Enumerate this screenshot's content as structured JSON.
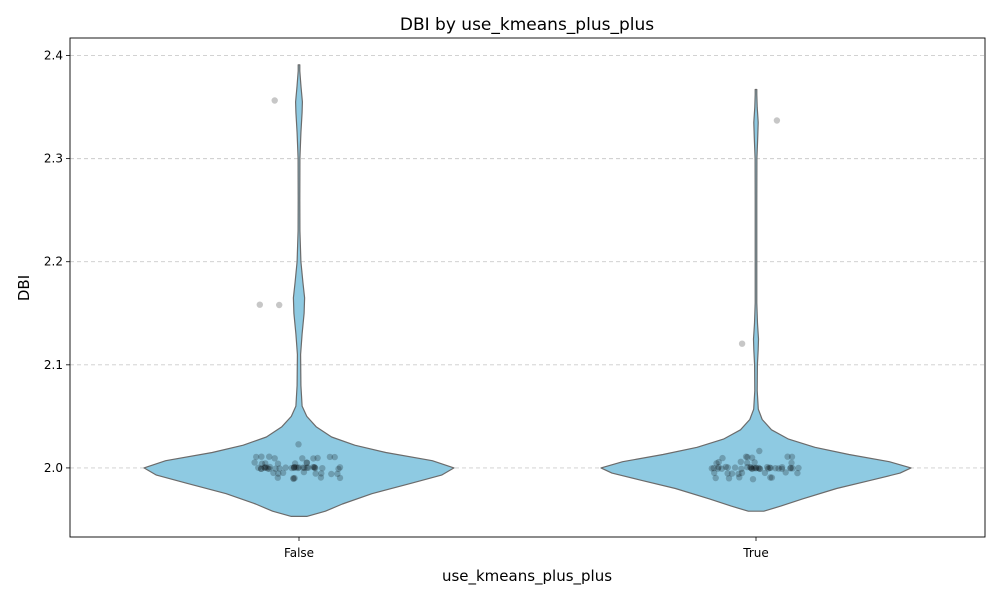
{
  "chart_data": {
    "type": "violin",
    "title": "DBI by use_kmeans_plus_plus",
    "xlabel": "use_kmeans_plus_plus",
    "ylabel": "DBI",
    "categories": [
      "False",
      "True"
    ],
    "yticks": [
      "2.0",
      "2.1",
      "2.2",
      "2.3",
      "2.4"
    ],
    "ylim": [
      1.933,
      2.417
    ],
    "grid": "y-dashed",
    "violin_color": "#8ecae2",
    "outline_color": "#6b6b6b",
    "point_color": "#000000",
    "series": [
      {
        "category": "False",
        "extent": [
          1.953,
          2.391
        ],
        "density": [
          [
            1.953,
            0.05
          ],
          [
            1.958,
            0.17
          ],
          [
            1.965,
            0.28
          ],
          [
            1.975,
            0.47
          ],
          [
            1.985,
            0.72
          ],
          [
            1.993,
            0.92
          ],
          [
            2.0,
            1.0
          ],
          [
            2.007,
            0.86
          ],
          [
            2.015,
            0.56
          ],
          [
            2.022,
            0.36
          ],
          [
            2.03,
            0.21
          ],
          [
            2.04,
            0.11
          ],
          [
            2.05,
            0.05
          ],
          [
            2.06,
            0.02
          ],
          [
            2.08,
            0.012
          ],
          [
            2.11,
            0.01
          ],
          [
            2.13,
            0.02
          ],
          [
            2.15,
            0.033
          ],
          [
            2.165,
            0.036
          ],
          [
            2.18,
            0.025
          ],
          [
            2.2,
            0.012
          ],
          [
            2.23,
            0.006
          ],
          [
            2.26,
            0.005
          ],
          [
            2.3,
            0.006
          ],
          [
            2.325,
            0.012
          ],
          [
            2.345,
            0.02
          ],
          [
            2.355,
            0.022
          ],
          [
            2.37,
            0.013
          ],
          [
            2.385,
            0.005
          ],
          [
            2.391,
            0.004
          ]
        ],
        "points": [
          2.0,
          2.0,
          2.0,
          2.0,
          2.0,
          2.0,
          2.0,
          2.0,
          2.0,
          2.0,
          2.0,
          2.0,
          2.0,
          2.0,
          2.0,
          2.0,
          2.0,
          2.0,
          2.0,
          2.0,
          2.0,
          2.0,
          2.0,
          2.0,
          2.0,
          2.0,
          2.0,
          2.0,
          2.0,
          2.0,
          1.99,
          1.99,
          1.99,
          1.99,
          1.99,
          1.99,
          1.995,
          1.995,
          1.995,
          1.995,
          1.995,
          1.995,
          1.995,
          1.995,
          2.005,
          2.005,
          2.005,
          2.005,
          2.005,
          2.005,
          2.005,
          2.01,
          2.01,
          2.01,
          2.01,
          2.01,
          2.01,
          2.01,
          2.01,
          2.01,
          2.022,
          2.158,
          2.158,
          2.356
        ]
      },
      {
        "category": "True",
        "extent": [
          1.958,
          2.367
        ],
        "density": [
          [
            1.958,
            0.05
          ],
          [
            1.963,
            0.16
          ],
          [
            1.97,
            0.3
          ],
          [
            1.98,
            0.52
          ],
          [
            1.988,
            0.74
          ],
          [
            1.995,
            0.93
          ],
          [
            2.0,
            1.0
          ],
          [
            2.006,
            0.86
          ],
          [
            2.013,
            0.6
          ],
          [
            2.02,
            0.38
          ],
          [
            2.028,
            0.21
          ],
          [
            2.037,
            0.1
          ],
          [
            2.047,
            0.04
          ],
          [
            2.057,
            0.015
          ],
          [
            2.075,
            0.008
          ],
          [
            2.1,
            0.009
          ],
          [
            2.115,
            0.014
          ],
          [
            2.125,
            0.016
          ],
          [
            2.14,
            0.01
          ],
          [
            2.16,
            0.005
          ],
          [
            2.2,
            0.004
          ],
          [
            2.26,
            0.004
          ],
          [
            2.3,
            0.006
          ],
          [
            2.32,
            0.011
          ],
          [
            2.335,
            0.014
          ],
          [
            2.35,
            0.008
          ],
          [
            2.362,
            0.004
          ],
          [
            2.367,
            0.003
          ]
        ],
        "points": [
          2.0,
          2.0,
          2.0,
          2.0,
          2.0,
          2.0,
          2.0,
          2.0,
          2.0,
          2.0,
          2.0,
          2.0,
          2.0,
          2.0,
          2.0,
          2.0,
          2.0,
          2.0,
          2.0,
          2.0,
          2.0,
          2.0,
          2.0,
          2.0,
          2.0,
          2.0,
          2.0,
          2.0,
          2.0,
          2.0,
          2.0,
          2.0,
          1.99,
          1.99,
          1.99,
          1.99,
          1.99,
          1.99,
          1.995,
          1.995,
          1.995,
          1.995,
          1.995,
          1.995,
          1.995,
          1.995,
          2.005,
          2.005,
          2.005,
          2.005,
          2.005,
          2.005,
          2.01,
          2.01,
          2.01,
          2.01,
          2.01,
          2.01,
          2.016,
          2.12,
          2.337
        ]
      }
    ]
  }
}
